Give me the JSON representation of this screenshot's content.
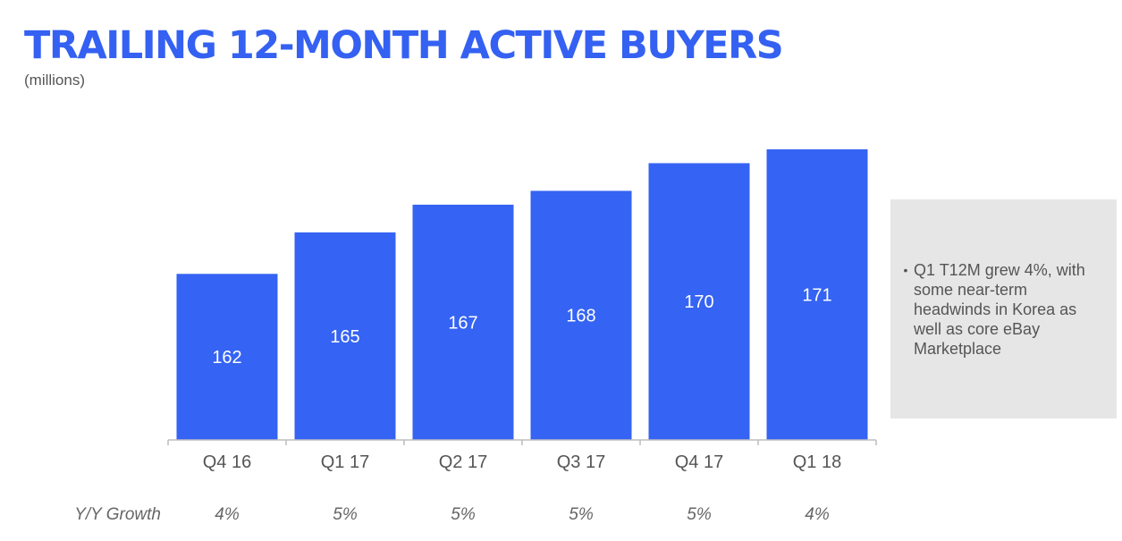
{
  "title": "TRAILING 12-MONTH ACTIVE BUYERS",
  "subtitle": "(millions)",
  "chart_data": {
    "type": "bar",
    "categories": [
      "Q4 16",
      "Q1 17",
      "Q2 17",
      "Q3 17",
      "Q4 17",
      "Q1 18"
    ],
    "values": [
      162,
      165,
      167,
      168,
      170,
      171
    ],
    "data_labels": [
      "162",
      "165",
      "167",
      "168",
      "170",
      "171"
    ],
    "title": "TRAILING 12-MONTH ACTIVE BUYERS",
    "subtitle": "(millions)",
    "xlabel": "",
    "ylabel": "",
    "ylim": [
      150,
      173
    ],
    "grid": false,
    "bar_color": "#3563f3",
    "growth_row": {
      "label": "Y/Y Growth",
      "values": [
        "4%",
        "5%",
        "5%",
        "5%",
        "5%",
        "4%"
      ]
    }
  },
  "callout": {
    "bullet": "•",
    "text": "Q1 T12M grew 4%, with some near-term headwinds in Korea as well as core eBay Marketplace"
  },
  "colors": {
    "accent": "#3461f2",
    "bar": "#3563f3",
    "callout_bg": "#e6e6e6",
    "text": "#555555"
  }
}
